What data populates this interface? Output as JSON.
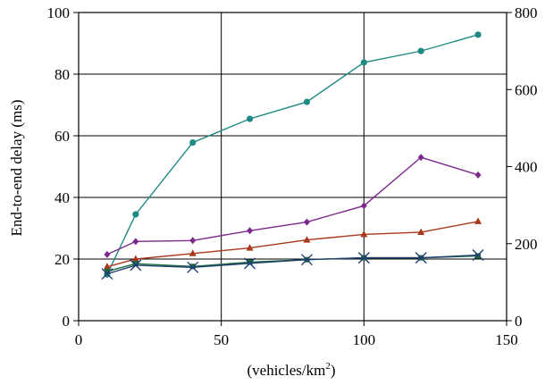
{
  "chart_data": {
    "type": "line",
    "xlabel": "(vehicles/km",
    "xlabel_superscript": "2",
    "xlabel_suffix": ")",
    "ylabel": "End-to-end delay (ms)",
    "xlim": [
      0,
      150
    ],
    "ylim": [
      0,
      100
    ],
    "y2lim": [
      0,
      800
    ],
    "x_ticks": [
      0,
      50,
      100,
      150
    ],
    "y_ticks": [
      0,
      20,
      40,
      60,
      80,
      100
    ],
    "y2_ticks": [
      0,
      200,
      400,
      600,
      800
    ],
    "grid": true,
    "legend": "none",
    "x": [
      10,
      20,
      40,
      60,
      80,
      100,
      120,
      140
    ],
    "series": [
      {
        "marker": "circle",
        "color": "#1f8a84",
        "values": [
          15,
          34.5,
          57.8,
          65.5,
          71,
          83.8,
          87.5,
          92.8
        ]
      },
      {
        "marker": "diamond",
        "color": "#7b2a8c",
        "values": [
          21.5,
          25.7,
          26,
          29.2,
          32,
          37.3,
          53,
          47.3
        ]
      },
      {
        "marker": "triangle",
        "color": "#a8381c",
        "values": [
          17.5,
          20,
          21.8,
          23.6,
          26.2,
          28,
          28.7,
          32.2
        ]
      },
      {
        "marker": "square",
        "color": "#1a6a3a",
        "values": [
          16,
          18.5,
          17.6,
          19,
          19.8,
          20.4,
          20.4,
          21
        ]
      },
      {
        "marker": "x",
        "color": "#1f3f73",
        "values": [
          15.2,
          18,
          17.3,
          18.6,
          19.8,
          20.4,
          20.4,
          21.3
        ]
      }
    ]
  }
}
